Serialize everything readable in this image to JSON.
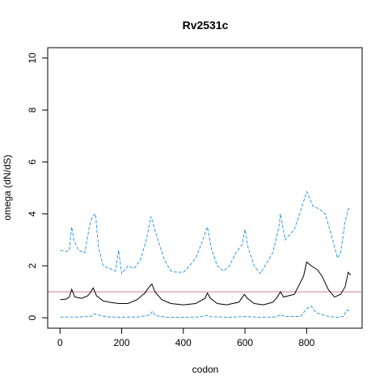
{
  "chart_data": {
    "type": "line",
    "title": "Rv2531c",
    "xlabel": "codon",
    "ylabel": "omega (dN/dS)",
    "xlim": [
      -40,
      980
    ],
    "ylim": [
      -0.4,
      10.4
    ],
    "xticks": [
      0,
      200,
      400,
      600,
      800
    ],
    "yticks": [
      0,
      2,
      4,
      6,
      8,
      10
    ],
    "xtick_labels": [
      "0",
      "200",
      "400",
      "600",
      "800"
    ],
    "ytick_labels": [
      "0",
      "2",
      "4",
      "6",
      "8",
      "10"
    ],
    "grid": false,
    "reference_line": {
      "y": 1,
      "color": "#cc79a7"
    },
    "series": [
      {
        "style": "solid",
        "color": "#000000",
        "x": [
          1,
          20,
          30,
          38,
          48,
          70,
          90,
          100,
          108,
          118,
          140,
          160,
          190,
          220,
          250,
          275,
          290,
          298,
          308,
          330,
          360,
          400,
          440,
          470,
          478,
          488,
          510,
          540,
          580,
          598,
          608,
          630,
          660,
          690,
          705,
          715,
          725,
          760,
          790,
          800,
          815,
          835,
          850,
          870,
          890,
          910,
          925,
          935,
          943
        ],
        "y": [
          0.7,
          0.72,
          0.8,
          1.1,
          0.8,
          0.75,
          0.85,
          1.0,
          1.15,
          0.85,
          0.65,
          0.6,
          0.55,
          0.55,
          0.7,
          0.95,
          1.2,
          1.3,
          1.0,
          0.7,
          0.55,
          0.5,
          0.55,
          0.75,
          0.95,
          0.75,
          0.55,
          0.5,
          0.6,
          0.9,
          0.75,
          0.55,
          0.5,
          0.6,
          0.8,
          1.0,
          0.8,
          0.9,
          1.6,
          2.15,
          2.0,
          1.85,
          1.6,
          1.1,
          0.8,
          0.9,
          1.2,
          1.75,
          1.65
        ]
      },
      {
        "style": "dashed",
        "color": "#3399dd",
        "x": [
          1,
          20,
          30,
          38,
          45,
          60,
          80,
          95,
          105,
          115,
          125,
          140,
          160,
          180,
          190,
          200,
          220,
          240,
          260,
          280,
          295,
          305,
          320,
          340,
          360,
          380,
          400,
          420,
          440,
          460,
          478,
          490,
          510,
          530,
          550,
          570,
          590,
          600,
          610,
          630,
          650,
          670,
          690,
          710,
          715,
          730,
          760,
          780,
          800,
          810,
          820,
          840,
          860,
          880,
          900,
          910,
          925,
          935,
          943
        ],
        "y": [
          2.6,
          2.55,
          2.6,
          3.5,
          3.0,
          2.6,
          2.5,
          3.5,
          3.9,
          4.0,
          2.7,
          2.0,
          1.9,
          1.8,
          2.6,
          1.7,
          2.0,
          1.9,
          2.2,
          3.0,
          3.9,
          3.5,
          2.9,
          2.2,
          1.8,
          1.75,
          1.75,
          2.0,
          2.3,
          2.9,
          3.5,
          2.7,
          2.0,
          1.8,
          2.0,
          2.5,
          2.8,
          3.4,
          2.7,
          2.0,
          1.7,
          2.1,
          2.5,
          3.5,
          4.0,
          3.0,
          3.4,
          4.1,
          4.85,
          4.6,
          4.3,
          4.2,
          4.0,
          3.2,
          2.3,
          2.5,
          3.7,
          4.2,
          4.2
        ]
      },
      {
        "style": "dashed",
        "color": "#3399dd",
        "x": [
          1,
          50,
          100,
          110,
          150,
          200,
          250,
          290,
          300,
          310,
          350,
          400,
          450,
          480,
          490,
          550,
          600,
          650,
          700,
          715,
          730,
          780,
          800,
          815,
          830,
          870,
          900,
          920,
          930,
          943
        ],
        "y": [
          0.03,
          0.03,
          0.05,
          0.15,
          0.04,
          0.02,
          0.03,
          0.1,
          0.25,
          0.08,
          0.02,
          0.02,
          0.03,
          0.1,
          0.04,
          0.02,
          0.05,
          0.02,
          0.03,
          0.12,
          0.05,
          0.05,
          0.35,
          0.45,
          0.2,
          0.05,
          0.02,
          0.05,
          0.3,
          0.25
        ]
      }
    ]
  }
}
